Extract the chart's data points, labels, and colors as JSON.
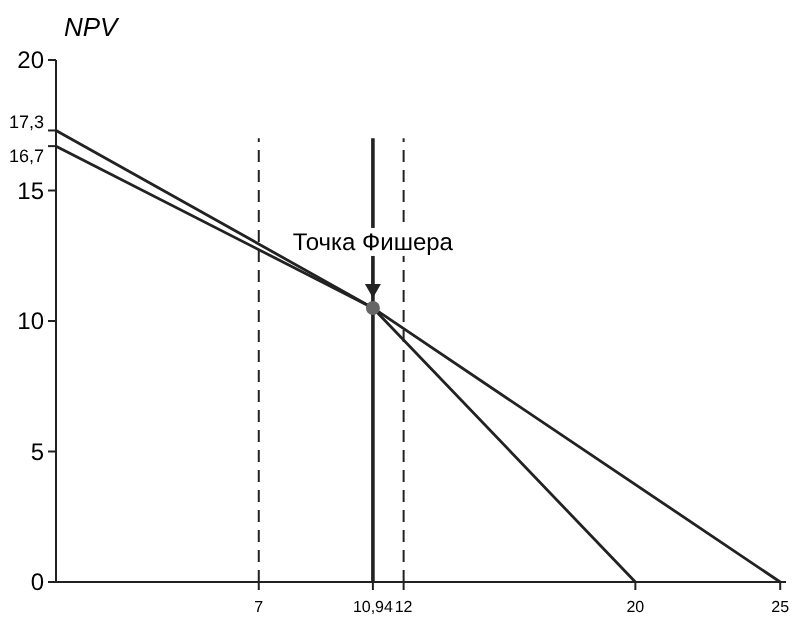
{
  "chart_data": {
    "type": "line",
    "ylabel": "NPV",
    "xlim": [
      0,
      25.2
    ],
    "ylim": [
      0,
      20
    ],
    "xticks": [
      7,
      {
        "value": 10.94,
        "label": "10,94"
      },
      12,
      20,
      25
    ],
    "yticks": [
      0,
      5,
      10,
      15,
      {
        "value": 16.7,
        "label": "16,7"
      },
      {
        "value": 17.3,
        "label": "17,3"
      },
      20
    ],
    "series": [
      {
        "color": "#222222",
        "x": [
          0,
          10.94,
          20
        ],
        "values": [
          17.3,
          10.5,
          0
        ]
      },
      {
        "color": "#222222",
        "x": [
          0,
          10.94,
          25
        ],
        "values": [
          16.7,
          10.5,
          0
        ]
      },
      {
        "type": "scatter",
        "color": "#666666",
        "x": [
          10.94
        ],
        "values": [
          10.5
        ],
        "marker": "circle"
      }
    ],
    "ref_lines": [
      {
        "axis": "x",
        "value": 7,
        "line_style": "dashed",
        "color": "#222222"
      },
      {
        "axis": "x",
        "value": 12,
        "line_style": "dashed",
        "color": "#222222"
      },
      {
        "axis": "x",
        "value": 10.94,
        "line_style": "solid",
        "color": "#222222"
      }
    ],
    "annotations": [
      {
        "text": "Точка Фишера",
        "x": 10.94,
        "y": 10.5
      }
    ],
    "grid": false,
    "marker": "none",
    "line_style": "solid"
  }
}
